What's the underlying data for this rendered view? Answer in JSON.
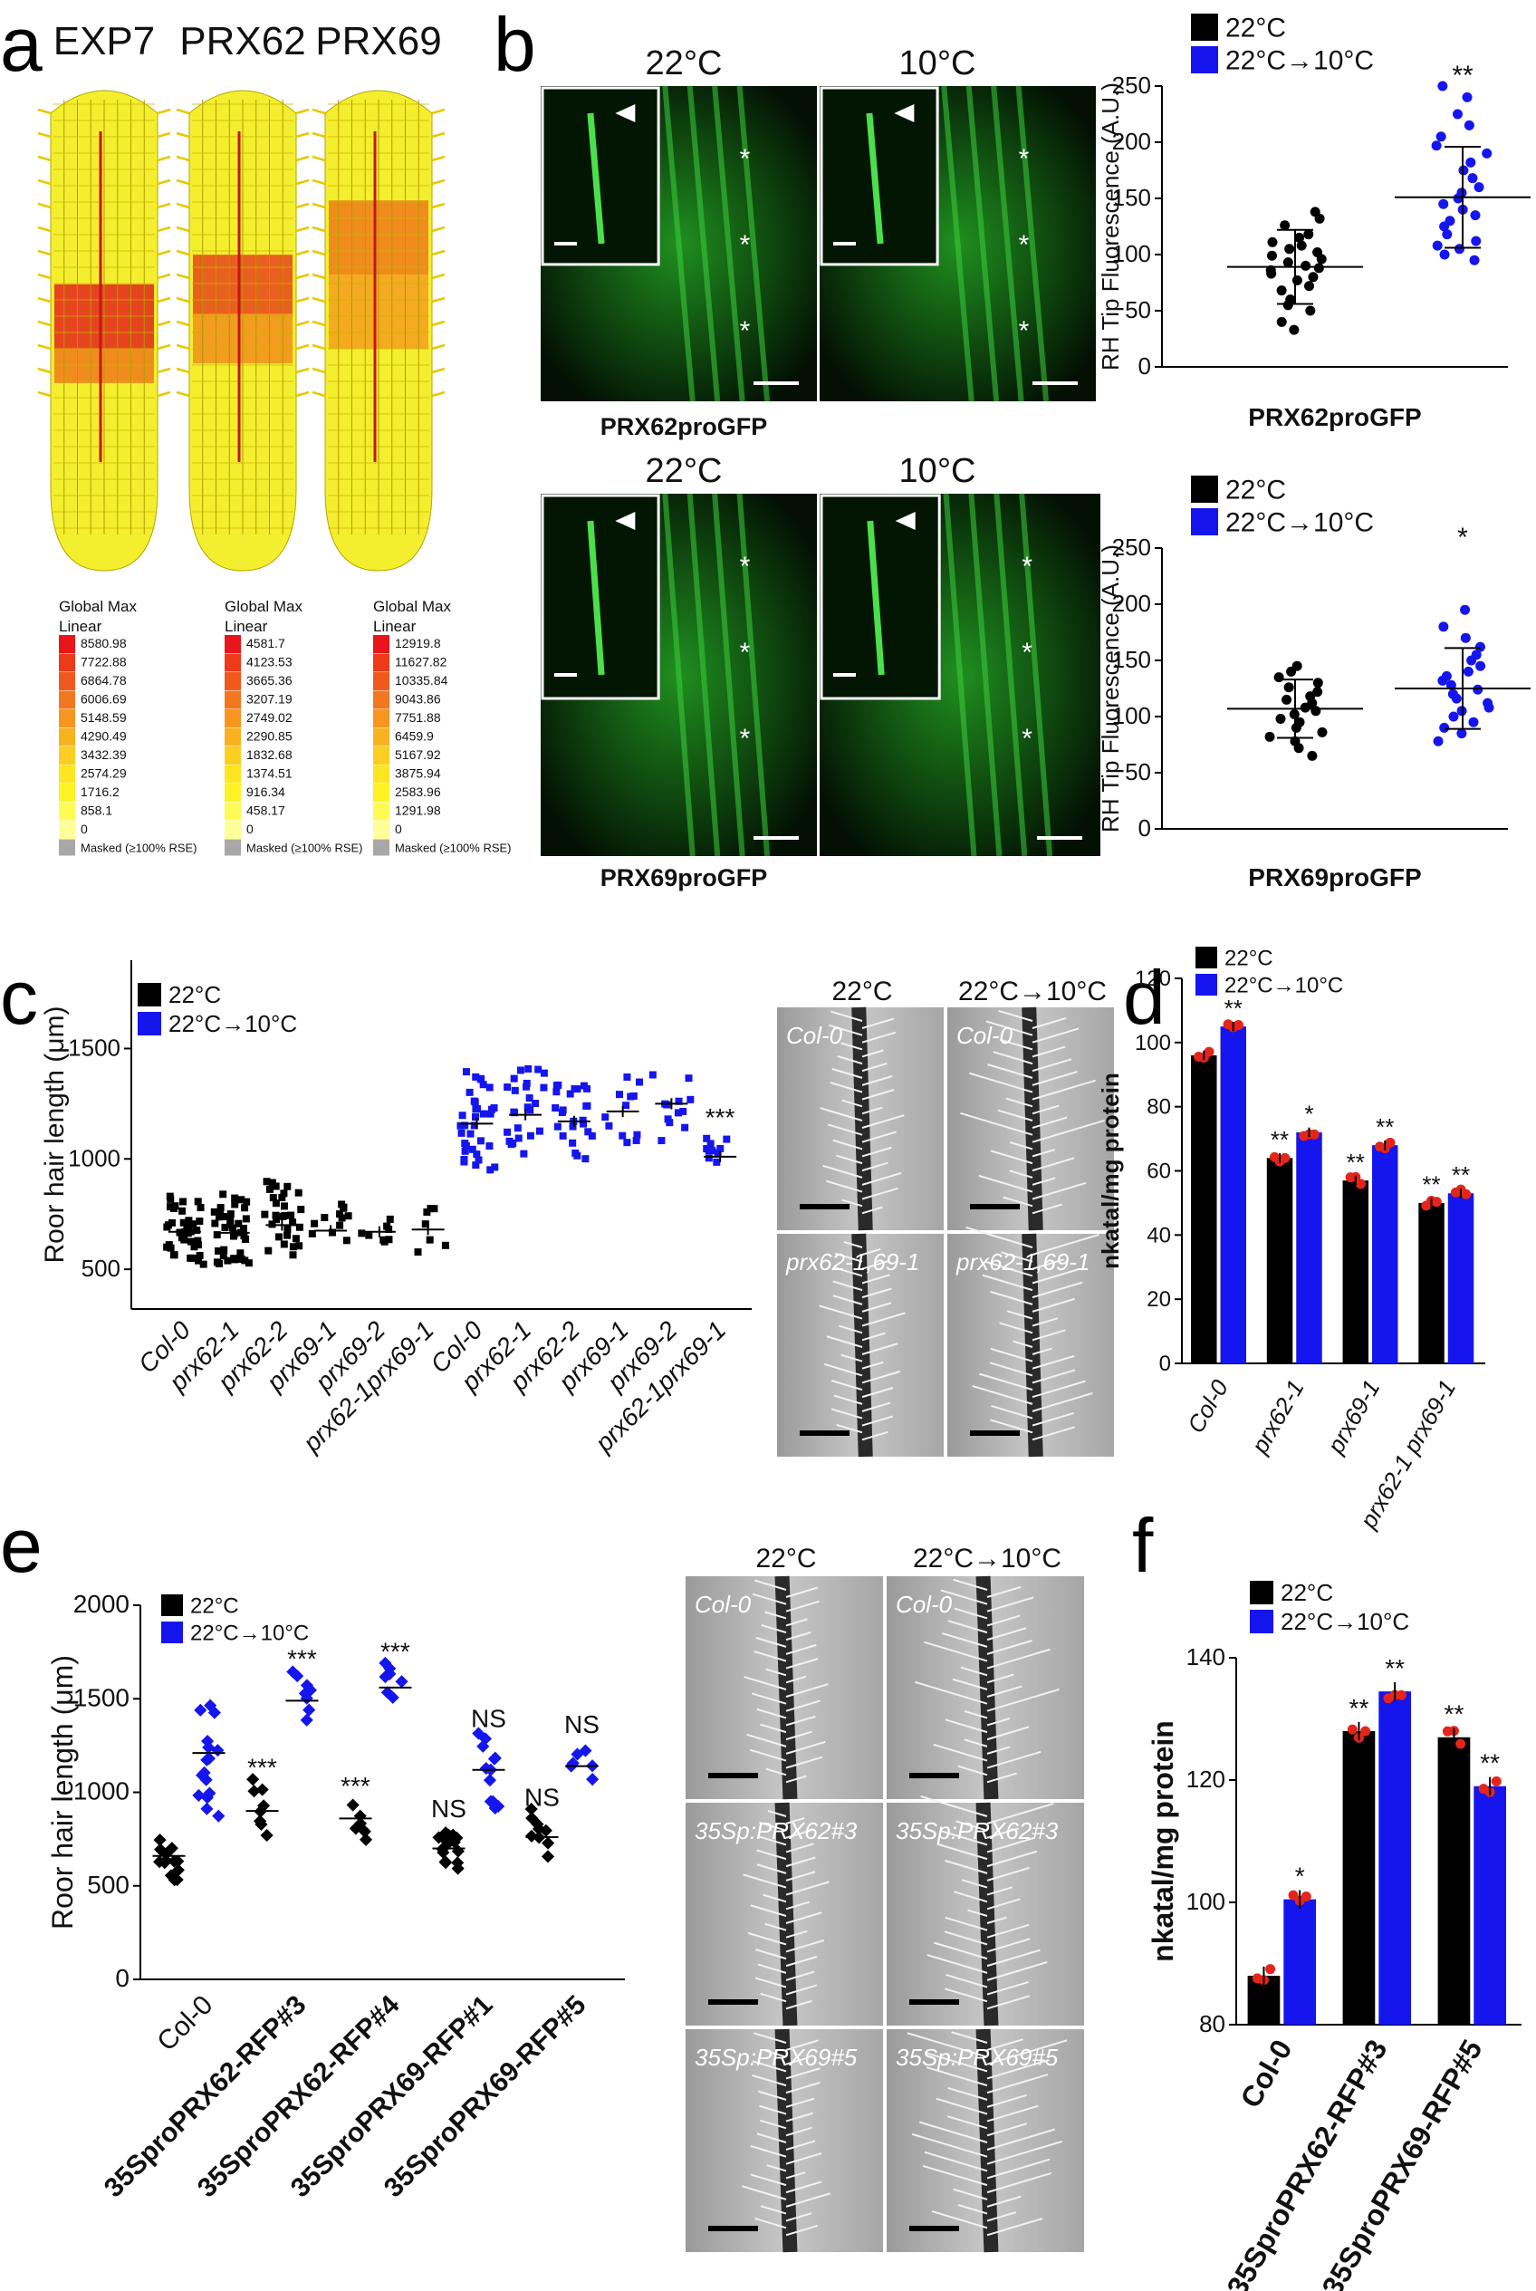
{
  "panels": {
    "a": {
      "label": "a",
      "genes": [
        "EXP7",
        "PRX62",
        "PRX69"
      ],
      "legends": [
        {
          "title1": "Global Max",
          "title2": "Linear",
          "values": [
            "8580.98",
            "7722.88",
            "6864.78",
            "6006.69",
            "5148.59",
            "4290.49",
            "3432.39",
            "2574.29",
            "1716.2",
            "858.1",
            "0"
          ],
          "masked": "Masked (≥100% RSE)"
        },
        {
          "title1": "Global Max",
          "title2": "Linear",
          "values": [
            "4581.7",
            "4123.53",
            "3665.36",
            "3207.19",
            "2749.02",
            "2290.85",
            "1832.68",
            "1374.51",
            "916.34",
            "458.17",
            "0"
          ],
          "masked": "Masked (≥100% RSE)"
        },
        {
          "title1": "Global Max",
          "title2": "Linear",
          "values": [
            "12919.8",
            "11627.82",
            "10335.84",
            "9043.86",
            "7751.88",
            "6459.9",
            "5167.92",
            "3875.94",
            "2583.96",
            "1291.98",
            "0"
          ],
          "masked": "Masked (≥100% RSE)"
        }
      ],
      "legend_colors": [
        "#e8161b",
        "#ec3a1b",
        "#f0591c",
        "#f3771e",
        "#f6951f",
        "#f8b21f",
        "#fbcf20",
        "#fde621",
        "#fff326",
        "#fffb55",
        "#ffff99",
        "#a8a8a8"
      ]
    },
    "b": {
      "label": "b",
      "temps": [
        "22°C",
        "10°C"
      ],
      "captions": [
        "PRX62proGFP",
        "PRX69proGFP"
      ],
      "charts": [
        {
          "type": "scatter",
          "ylabel": "RH Tip Fluorescence (A.U.)",
          "xlabel": "PRX62proGFP",
          "ylim": [
            0,
            250
          ],
          "yticks": [
            0,
            50,
            100,
            150,
            200,
            250
          ],
          "legend": [
            "22°C",
            "22°C→10°C"
          ],
          "legend_colors": [
            "#000000",
            "#1515ee"
          ],
          "groups": [
            {
              "name": "22°C",
              "mean": 89,
              "sd_low": 56,
              "sd_high": 122,
              "points": [
                33,
                40,
                50,
                55,
                60,
                68,
                72,
                77,
                80,
                83,
                86,
                88,
                90,
                93,
                96,
                99,
                102,
                105,
                108,
                111,
                115,
                118,
                126,
                132,
                138
              ]
            },
            {
              "name": "22°C→10°C",
              "mean": 151,
              "sd_low": 106,
              "sd_high": 196,
              "sig": "**",
              "points": [
                95,
                100,
                105,
                108,
                112,
                118,
                125,
                130,
                135,
                140,
                145,
                150,
                155,
                160,
                168,
                175,
                182,
                190,
                197,
                205,
                215,
                225,
                240,
                250
              ]
            }
          ]
        },
        {
          "type": "scatter",
          "ylabel": "RH Tip Fluorescence (A.U.)",
          "xlabel": "PRX69proGFP",
          "ylim": [
            0,
            250
          ],
          "yticks": [
            0,
            50,
            100,
            150,
            200,
            250
          ],
          "legend": [
            "22°C",
            "22°C→10°C"
          ],
          "legend_colors": [
            "#000000",
            "#1515ee"
          ],
          "groups": [
            {
              "name": "22°C",
              "mean": 107,
              "sd_low": 81,
              "sd_high": 133,
              "points": [
                65,
                72,
                78,
                82,
                86,
                90,
                95,
                98,
                102,
                105,
                108,
                112,
                115,
                118,
                122,
                126,
                130,
                135,
                140,
                145
              ]
            },
            {
              "name": "22°C→10°C",
              "mean": 125,
              "sd_low": 89,
              "sd_high": 161,
              "sig": "*",
              "points": [
                78,
                85,
                90,
                95,
                100,
                105,
                108,
                112,
                116,
                120,
                124,
                128,
                132,
                136,
                140,
                145,
                150,
                155,
                162,
                170,
                180,
                195
              ]
            }
          ]
        }
      ]
    },
    "c": {
      "label": "c",
      "type": "scatter",
      "ylabel": "Roor hair length (μm)",
      "ylim": [
        320,
        1900
      ],
      "yticks": [
        500,
        1000,
        1500
      ],
      "legend": [
        "22°C",
        "22°C→10°C"
      ],
      "legend_colors": [
        "#000000",
        "#1515ee"
      ],
      "categories": [
        "Col-0",
        "prx62-1",
        "prx62-2",
        "prx69-1",
        "prx69-2",
        "prx62-1prx69-1",
        "Col-0",
        "prx62-1",
        "prx62-2",
        "prx69-1",
        "prx69-2",
        "prx62-1prx69-1"
      ],
      "groups": [
        {
          "mean": 670,
          "n": 40,
          "lo": 520,
          "hi": 840,
          "color": "#000000"
        },
        {
          "mean": 665,
          "n": 40,
          "lo": 510,
          "hi": 840,
          "color": "#000000"
        },
        {
          "mean": 700,
          "n": 30,
          "lo": 540,
          "hi": 900,
          "color": "#000000"
        },
        {
          "mean": 675,
          "n": 12,
          "lo": 560,
          "hi": 800,
          "color": "#000000"
        },
        {
          "mean": 670,
          "n": 8,
          "lo": 580,
          "hi": 750,
          "color": "#000000"
        },
        {
          "mean": 680,
          "n": 7,
          "lo": 560,
          "hi": 800,
          "color": "#000000"
        },
        {
          "mean": 1160,
          "n": 35,
          "lo": 950,
          "hi": 1420,
          "color": "#1515ee"
        },
        {
          "mean": 1200,
          "n": 25,
          "lo": 1000,
          "hi": 1420,
          "color": "#1515ee"
        },
        {
          "mean": 1170,
          "n": 25,
          "lo": 1000,
          "hi": 1380,
          "color": "#1515ee"
        },
        {
          "mean": 1215,
          "n": 12,
          "lo": 1050,
          "hi": 1380,
          "color": "#1515ee"
        },
        {
          "mean": 1250,
          "n": 12,
          "lo": 1080,
          "hi": 1400,
          "color": "#1515ee"
        },
        {
          "mean": 1010,
          "n": 10,
          "lo": 920,
          "hi": 1100,
          "color": "#1515ee",
          "sig": "***"
        }
      ],
      "image_cols": [
        "22°C",
        "22°C→10°C"
      ],
      "image_labels": [
        "Col-0",
        "Col-0",
        "prx62-1,69-1",
        "prx62-1,69-1"
      ]
    },
    "d": {
      "label": "d",
      "type": "bar",
      "ylabel": "nkatal/mg protein",
      "ylim": [
        0,
        120
      ],
      "yticks": [
        0,
        20,
        40,
        60,
        80,
        100,
        120
      ],
      "legend": [
        "22°C",
        "22°C→10°C"
      ],
      "legend_colors": [
        "#000000",
        "#1515ee"
      ],
      "categories": [
        "Col-0",
        "prx62-1",
        "prx69-1",
        "prx62-1 prx69-1"
      ],
      "series": [
        {
          "name": "22°C",
          "values": [
            96,
            64,
            57,
            50
          ],
          "sig": [
            "",
            "**",
            "**",
            "**"
          ]
        },
        {
          "name": "22°C→10°C",
          "values": [
            105,
            72,
            68,
            53
          ],
          "sig": [
            "**",
            "*",
            "**",
            "**"
          ]
        }
      ]
    },
    "e": {
      "label": "e",
      "type": "scatter",
      "ylabel": "Roor hair length (μm)",
      "ylim": [
        0,
        2000
      ],
      "yticks": [
        0,
        500,
        1000,
        1500,
        2000
      ],
      "legend": [
        "22°C",
        "22°C→10°C"
      ],
      "legend_colors": [
        "#000000",
        "#1515ee"
      ],
      "categories": [
        "Col-0",
        "35SproPRX62-RFP#3",
        "35SproPRX62-RFP#4",
        "35SproPRX69-RFP#1",
        "35SproPRX69-RFP#5"
      ],
      "groups": [
        {
          "cat": 0,
          "mean": 660,
          "lo": 560,
          "hi": 780,
          "n": 14,
          "color": "#000000"
        },
        {
          "cat": 0,
          "mean": 1210,
          "lo": 900,
          "hi": 1500,
          "n": 16,
          "color": "#1515ee"
        },
        {
          "cat": 1,
          "mean": 900,
          "lo": 780,
          "hi": 1020,
          "n": 8,
          "color": "#000000",
          "sig": "***"
        },
        {
          "cat": 1,
          "mean": 1490,
          "lo": 1390,
          "hi": 1600,
          "n": 8,
          "color": "#1515ee",
          "sig": "***"
        },
        {
          "cat": 2,
          "mean": 860,
          "lo": 800,
          "hi": 920,
          "n": 6,
          "color": "#000000",
          "sig": "***"
        },
        {
          "cat": 2,
          "mean": 1560,
          "lo": 1490,
          "hi": 1640,
          "n": 8,
          "color": "#1515ee",
          "sig": "***"
        },
        {
          "cat": 3,
          "mean": 700,
          "lo": 590,
          "hi": 800,
          "n": 16,
          "color": "#000000",
          "sig": "NS"
        },
        {
          "cat": 3,
          "mean": 1120,
          "lo": 950,
          "hi": 1280,
          "n": 12,
          "color": "#1515ee",
          "sig": "NS"
        },
        {
          "cat": 4,
          "mean": 760,
          "lo": 680,
          "hi": 860,
          "n": 9,
          "color": "#000000",
          "sig": "NS"
        },
        {
          "cat": 4,
          "mean": 1140,
          "lo": 1060,
          "hi": 1250,
          "n": 6,
          "color": "#1515ee",
          "sig": "NS"
        }
      ],
      "image_cols": [
        "22°C",
        "22°C→10°C"
      ],
      "image_labels": [
        "Col-0",
        "Col-0",
        "35Sp:PRX62#3",
        "35Sp:PRX62#3",
        "35Sp:PRX69#5",
        "35Sp:PRX69#5"
      ]
    },
    "f": {
      "label": "f",
      "type": "bar",
      "ylabel": "nkatal/mg protein",
      "ylim": [
        80,
        140
      ],
      "yticks": [
        80,
        100,
        120,
        140
      ],
      "legend": [
        "22°C",
        "22°C→10°C"
      ],
      "legend_colors": [
        "#000000",
        "#1515ee"
      ],
      "categories": [
        "Col-0",
        "35SproPRX62-RFP#3",
        "35SproPRX69-RFP#5"
      ],
      "series": [
        {
          "name": "22°C",
          "values": [
            88,
            128,
            127
          ],
          "sig": [
            "",
            "**",
            "**"
          ]
        },
        {
          "name": "22°C→10°C",
          "values": [
            100.5,
            134.5,
            119
          ],
          "sig": [
            "*",
            "**",
            "**"
          ]
        }
      ]
    }
  }
}
